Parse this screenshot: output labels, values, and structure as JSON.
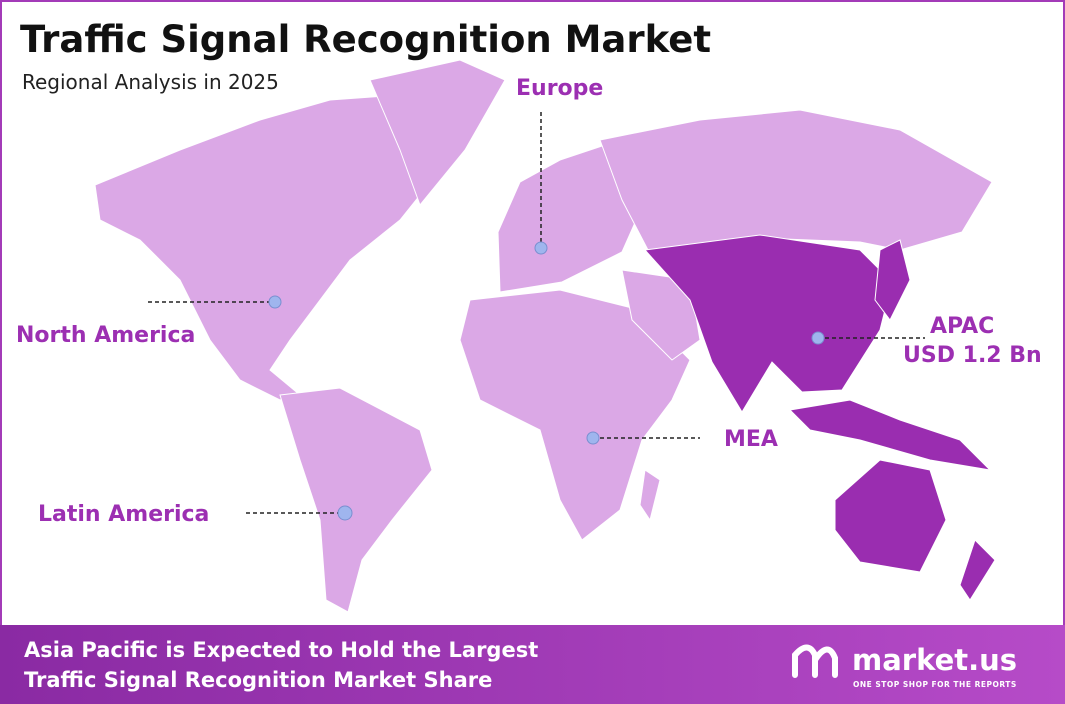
{
  "header": {
    "title": "Traffic Signal Recognition Market",
    "subtitle": "Regional Analysis in 2025"
  },
  "regions": [
    {
      "label": "North America"
    },
    {
      "label": "Europe"
    },
    {
      "label": "APAC",
      "value": "USD 1.2 Bn"
    },
    {
      "label": "MEA"
    },
    {
      "label": "Latin America"
    }
  ],
  "footer": {
    "lines": [
      "Asia Pacific is Expected to Hold the Largest",
      "Traffic Signal Recognition Market Share"
    ],
    "brand": "market.us",
    "tagline": "ONE STOP SHOP FOR THE REPORTS"
  }
}
